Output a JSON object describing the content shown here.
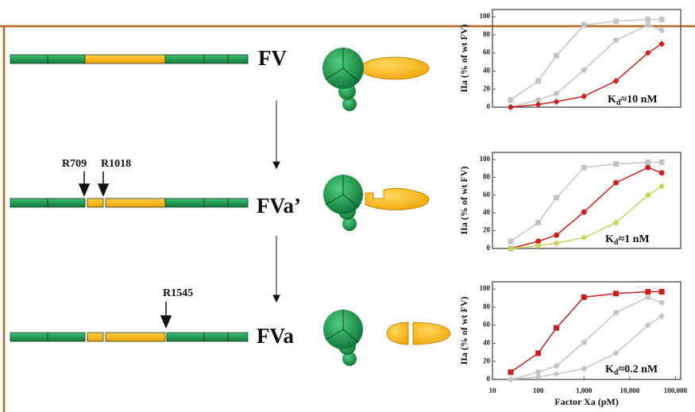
{
  "diagram": {
    "rows": [
      {
        "label": "FV"
      },
      {
        "label": "FVa’",
        "sites": [
          "R709",
          "R1018"
        ]
      },
      {
        "label": "FVa",
        "sites": [
          "R1545"
        ]
      }
    ]
  },
  "chart_data": [
    {
      "type": "line",
      "y_label": "IIa (% of wt FV)",
      "annotation": {
        "main": "K",
        "sub": "d",
        "rest": "≈10 nM"
      },
      "x": [
        25,
        100,
        250,
        1000,
        5000,
        25000,
        50000
      ],
      "xlim": [
        10,
        130000
      ],
      "xscale": "log",
      "ylim": [
        0,
        108
      ],
      "yticks": [
        0,
        20,
        40,
        60,
        80,
        100
      ],
      "series": [
        {
          "color": "#c4c4c4",
          "marker": "square",
          "values": [
            8,
            29,
            57,
            91,
            95,
            97,
            97
          ]
        },
        {
          "color": "#c4c4c4",
          "marker": "circle",
          "values": [
            0,
            8,
            15,
            41,
            74,
            91,
            85
          ]
        },
        {
          "color": "#cc1f1f",
          "marker": "diamond",
          "values": [
            0,
            3,
            6,
            12,
            29,
            60,
            70
          ]
        }
      ]
    },
    {
      "type": "line",
      "y_label": "IIa (% of wt FV)",
      "annotation": {
        "main": "K",
        "sub": "d",
        "rest": "≈1 nM"
      },
      "x": [
        25,
        100,
        250,
        1000,
        5000,
        25000,
        50000
      ],
      "xlim": [
        10,
        130000
      ],
      "xscale": "log",
      "ylim": [
        0,
        108
      ],
      "yticks": [
        0,
        20,
        40,
        60,
        80,
        100
      ],
      "series": [
        {
          "color": "#c4c4c4",
          "marker": "square",
          "values": [
            8,
            29,
            57,
            91,
            95,
            97,
            97
          ]
        },
        {
          "color": "#cc1f1f",
          "marker": "circle",
          "values": [
            0,
            8,
            15,
            41,
            74,
            91,
            85
          ]
        },
        {
          "color": "#c6d45c",
          "marker": "diamond",
          "values": [
            0,
            3,
            6,
            12,
            29,
            60,
            70
          ]
        }
      ]
    },
    {
      "type": "line",
      "y_label": "IIa (% of wt FV)",
      "x_label": "Factor Xa (pM)",
      "annotation": {
        "main": "K",
        "sub": "d",
        "rest": "≈0.2 nM"
      },
      "x": [
        25,
        100,
        250,
        1000,
        5000,
        25000,
        50000
      ],
      "xlim": [
        10,
        130000
      ],
      "xscale": "log",
      "xticks": [
        10,
        100,
        {
          "value": 1000,
          "label": "1,000"
        },
        {
          "value": 10000,
          "label": "10,000"
        },
        {
          "value": 100000,
          "label": "100,000"
        }
      ],
      "ylim": [
        0,
        108
      ],
      "yticks": [
        0,
        20,
        40,
        60,
        80,
        100
      ],
      "series": [
        {
          "color": "#cc1f1f",
          "marker": "square",
          "values": [
            8,
            29,
            57,
            91,
            95,
            97,
            97
          ]
        },
        {
          "color": "#c4c4c4",
          "marker": "circle",
          "values": [
            0,
            8,
            15,
            41,
            74,
            91,
            85
          ]
        },
        {
          "color": "#c4c4c4",
          "marker": "diamond",
          "values": [
            0,
            3,
            6,
            12,
            29,
            60,
            70
          ]
        }
      ]
    }
  ]
}
